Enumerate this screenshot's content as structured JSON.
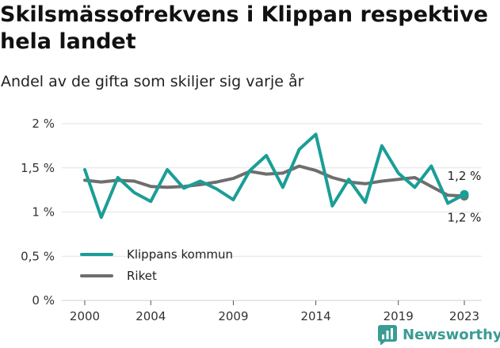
{
  "title": "Skilsmässofrekvens i Klippan respektive hela landet",
  "subtitle": "Andel av de gifta som skiljer sig varje år",
  "brand": {
    "name": "Newsworthy",
    "icon": "newsworthy-logo-icon",
    "color": "#3a9c93"
  },
  "chart_data": {
    "type": "line",
    "title": "Skilsmässofrekvens i Klippan respektive hela landet",
    "subtitle": "Andel av de gifta som skiljer sig varje år",
    "xlabel": "",
    "ylabel": "",
    "x": [
      2000,
      2001,
      2002,
      2003,
      2004,
      2005,
      2006,
      2007,
      2008,
      2009,
      2010,
      2011,
      2012,
      2013,
      2014,
      2015,
      2016,
      2017,
      2018,
      2019,
      2020,
      2021,
      2022,
      2023
    ],
    "x_ticks": [
      2000,
      2004,
      2009,
      2014,
      2019,
      2023
    ],
    "x_tick_labels": [
      "2000",
      "2004",
      "2009",
      "2014",
      "2019",
      "2023"
    ],
    "ylim": [
      0,
      2
    ],
    "y_ticks": [
      0,
      0.5,
      1,
      1.5,
      2
    ],
    "y_tick_labels": [
      "0 %",
      "0,5 %",
      "1 %",
      "1,5 %",
      "2 %"
    ],
    "grid": "horizontal",
    "legend_position": "bottom-left",
    "series": [
      {
        "name": "Klippans kommun",
        "color": "#1a9e96",
        "values": [
          1.48,
          0.94,
          1.39,
          1.22,
          1.12,
          1.48,
          1.27,
          1.35,
          1.26,
          1.14,
          1.47,
          1.64,
          1.28,
          1.71,
          1.88,
          1.07,
          1.37,
          1.11,
          1.75,
          1.44,
          1.28,
          1.52,
          1.1,
          1.2
        ],
        "end_label": "1,2 %"
      },
      {
        "name": "Riket",
        "color": "#6e6e6e",
        "values": [
          1.36,
          1.34,
          1.36,
          1.35,
          1.29,
          1.28,
          1.29,
          1.31,
          1.34,
          1.38,
          1.46,
          1.43,
          1.44,
          1.52,
          1.47,
          1.39,
          1.34,
          1.32,
          1.35,
          1.37,
          1.39,
          1.29,
          1.19,
          1.18
        ],
        "end_label": "1,2 %"
      }
    ]
  }
}
